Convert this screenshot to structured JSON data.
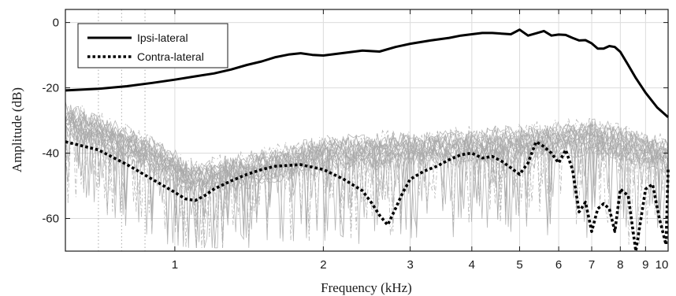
{
  "chart_data": {
    "type": "line",
    "title": "",
    "xlabel": "Frequency (kHz)",
    "ylabel": "Amplitude (dB)",
    "x_scale": "log",
    "xlim": [
      0.6,
      10
    ],
    "ylim": [
      -70,
      4
    ],
    "grid": true,
    "legend_position": "top-left",
    "x_ticks": [
      1,
      2,
      3,
      4,
      5,
      6,
      7,
      8,
      9,
      10
    ],
    "x_tick_labels": [
      "1",
      "2",
      "3",
      "4",
      "5",
      "6",
      "7",
      "8",
      "9",
      "10"
    ],
    "y_ticks": [
      0,
      -20,
      -40,
      -60
    ],
    "y_tick_labels": [
      "0",
      "-20",
      "-40",
      "-60"
    ],
    "reference_lines_x": [
      0.7,
      0.78,
      0.87
    ],
    "series": [
      {
        "name": "Ipsi-lateral",
        "style": "solid",
        "color": "#000000",
        "x": [
          0.6,
          0.7,
          0.8,
          0.9,
          1.0,
          1.1,
          1.2,
          1.3,
          1.4,
          1.5,
          1.6,
          1.7,
          1.8,
          1.9,
          2.0,
          2.2,
          2.4,
          2.6,
          2.8,
          3.0,
          3.3,
          3.6,
          3.8,
          4.0,
          4.2,
          4.4,
          4.6,
          4.8,
          5.0,
          5.2,
          5.4,
          5.6,
          5.8,
          6.0,
          6.2,
          6.4,
          6.6,
          6.8,
          7.0,
          7.2,
          7.4,
          7.6,
          7.8,
          8.0,
          8.3,
          8.6,
          9.0,
          9.5,
          10.0
        ],
        "y": [
          -20.8,
          -20.3,
          -19.5,
          -18.5,
          -17.5,
          -16.5,
          -15.6,
          -14.4,
          -13.0,
          -11.9,
          -10.6,
          -9.8,
          -9.4,
          -9.9,
          -10.1,
          -9.3,
          -8.6,
          -8.9,
          -7.5,
          -6.5,
          -5.5,
          -4.7,
          -4.0,
          -3.6,
          -3.2,
          -3.2,
          -3.4,
          -3.6,
          -2.2,
          -4.0,
          -3.3,
          -2.6,
          -4.0,
          -3.7,
          -3.8,
          -4.7,
          -5.5,
          -5.4,
          -6.4,
          -8.0,
          -8.0,
          -7.2,
          -7.5,
          -9.0,
          -13.0,
          -17.0,
          -21.5,
          -26.0,
          -29.0
        ]
      },
      {
        "name": "Contra-lateral",
        "style": "dotted",
        "color": "#000000",
        "x": [
          0.6,
          0.7,
          0.8,
          0.9,
          1.0,
          1.05,
          1.1,
          1.15,
          1.2,
          1.3,
          1.4,
          1.5,
          1.6,
          1.8,
          2.0,
          2.2,
          2.4,
          2.5,
          2.6,
          2.7,
          2.8,
          2.9,
          3.0,
          3.2,
          3.4,
          3.6,
          3.8,
          4.0,
          4.2,
          4.4,
          4.6,
          4.8,
          5.0,
          5.2,
          5.4,
          5.6,
          5.8,
          6.0,
          6.2,
          6.4,
          6.6,
          6.8,
          7.0,
          7.2,
          7.4,
          7.6,
          7.8,
          8.0,
          8.3,
          8.6,
          9.0,
          9.3,
          9.6,
          9.9,
          10.0
        ],
        "y": [
          -36.5,
          -39.0,
          -43.5,
          -48.0,
          -52.0,
          -54.0,
          -54.5,
          -53.0,
          -51.0,
          -48.5,
          -46.5,
          -45.0,
          -44.0,
          -43.5,
          -45.0,
          -48.0,
          -51.5,
          -55.0,
          -59.0,
          -62.0,
          -57.0,
          -52.0,
          -48.0,
          -45.5,
          -44.0,
          -42.0,
          -40.5,
          -40.0,
          -41.5,
          -41.0,
          -42.5,
          -44.5,
          -46.5,
          -43.0,
          -36.5,
          -38.0,
          -40.0,
          -43.0,
          -39.0,
          -45.0,
          -58.0,
          -55.0,
          -64.0,
          -57.0,
          -55.5,
          -57.0,
          -64.0,
          -51.0,
          -53.0,
          -70.0,
          -51.0,
          -49.5,
          -60.0,
          -68.0,
          -45.0
        ]
      }
    ]
  }
}
